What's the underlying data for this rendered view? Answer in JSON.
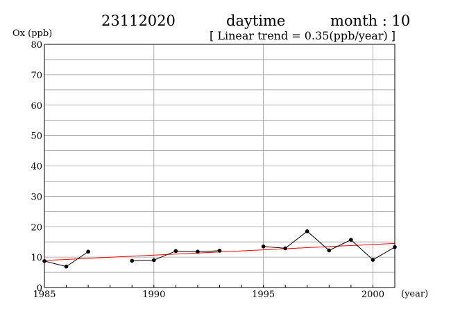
{
  "header": {
    "station": "23112020",
    "period": "daytime",
    "month_label": "month : 10",
    "trend_label": "[ Linear trend = 0.35(ppb/year) ]"
  },
  "chart_data": {
    "type": "line",
    "ylabel": "Ox (ppb)",
    "xlabel": "(year)",
    "xlim": [
      1985,
      2001
    ],
    "ylim": [
      0,
      80
    ],
    "x_ticks": [
      "1985",
      "1990",
      "1995",
      "2000"
    ],
    "y_ticks": [
      "0",
      "10",
      "20",
      "30",
      "40",
      "50",
      "60",
      "70",
      "80"
    ],
    "grid": true,
    "series": [
      {
        "color": "#000000",
        "points": [
          {
            "x": 1985,
            "y": 8.7
          },
          {
            "x": 1986,
            "y": 6.9
          },
          {
            "x": 1987,
            "y": 11.8
          },
          {
            "x": 1988,
            "y": null
          },
          {
            "x": 1989,
            "y": 8.8
          },
          {
            "x": 1990,
            "y": 9.0
          },
          {
            "x": 1991,
            "y": 12.0
          },
          {
            "x": 1992,
            "y": 11.8
          },
          {
            "x": 1993,
            "y": 12.1
          },
          {
            "x": 1994,
            "y": null
          },
          {
            "x": 1995,
            "y": 13.5
          },
          {
            "x": 1996,
            "y": 12.9
          },
          {
            "x": 1997,
            "y": 18.5
          },
          {
            "x": 1998,
            "y": 12.2
          },
          {
            "x": 1999,
            "y": 15.7
          },
          {
            "x": 2000,
            "y": 9.1
          },
          {
            "x": 2001,
            "y": 13.3
          }
        ]
      }
    ],
    "trend_line": {
      "color": "#ff0000",
      "start": {
        "x": 1985,
        "y": 8.9
      },
      "end": {
        "x": 2001,
        "y": 14.5
      }
    }
  }
}
